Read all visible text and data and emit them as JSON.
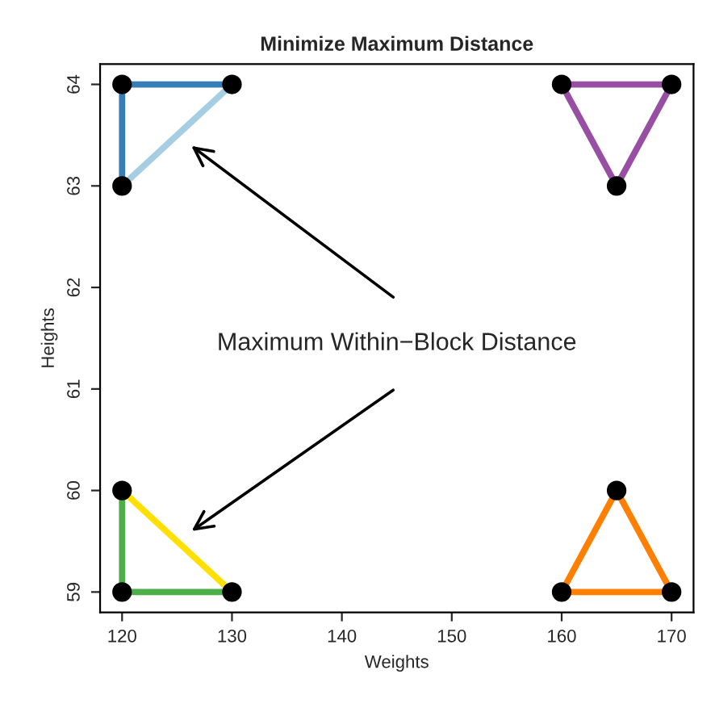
{
  "chart_data": {
    "type": "line",
    "title": "Minimize Maximum Distance",
    "xlabel": "Weights",
    "ylabel": "Heights",
    "series": [
      {
        "color": "#377eb8",
        "x": [
          120,
          130
        ],
        "values": [
          64,
          64
        ]
      },
      {
        "color": "#a6cee3",
        "x": [
          120,
          130
        ],
        "values": [
          63,
          64
        ]
      },
      {
        "color": "#377eb8",
        "x": [
          120,
          120
        ],
        "values": [
          63,
          64
        ]
      },
      {
        "color": "#984ea3",
        "x": [
          160,
          170
        ],
        "values": [
          64,
          64
        ]
      },
      {
        "color": "#984ea3",
        "x": [
          160,
          165
        ],
        "values": [
          64,
          63
        ]
      },
      {
        "color": "#984ea3",
        "x": [
          165,
          170
        ],
        "values": [
          63,
          64
        ]
      },
      {
        "color": "#4daf4a",
        "x": [
          120,
          120
        ],
        "values": [
          59,
          60
        ]
      },
      {
        "color": "#4daf4a",
        "x": [
          120,
          130
        ],
        "values": [
          59,
          59
        ]
      },
      {
        "color": "#ffe000",
        "x": [
          120,
          130
        ],
        "values": [
          60,
          59
        ]
      },
      {
        "color": "#ff7f00",
        "x": [
          160,
          170
        ],
        "values": [
          59,
          59
        ]
      },
      {
        "color": "#ff7f00",
        "x": [
          160,
          165
        ],
        "values": [
          59,
          60
        ]
      },
      {
        "color": "#ff7f00",
        "x": [
          165,
          170
        ],
        "values": [
          60,
          59
        ]
      },
      {
        "type": "scatter",
        "marker": "circle",
        "color": "#000000",
        "x": [
          120,
          130,
          120,
          160,
          170,
          165,
          120,
          120,
          130,
          160,
          170,
          165
        ],
        "values": [
          64,
          64,
          63,
          64,
          64,
          63,
          60,
          59,
          59,
          59,
          59,
          60
        ]
      }
    ],
    "annotations": [
      "Maximum Within−Block Distance"
    ],
    "xlim": [
      118,
      172
    ],
    "ylim": [
      58.8,
      64.2
    ],
    "xticks": [
      120,
      130,
      140,
      150,
      160,
      170
    ],
    "yticks": [
      59,
      60,
      61,
      62,
      63,
      64
    ],
    "grid": false,
    "legend": false,
    "line_style": "solid"
  }
}
